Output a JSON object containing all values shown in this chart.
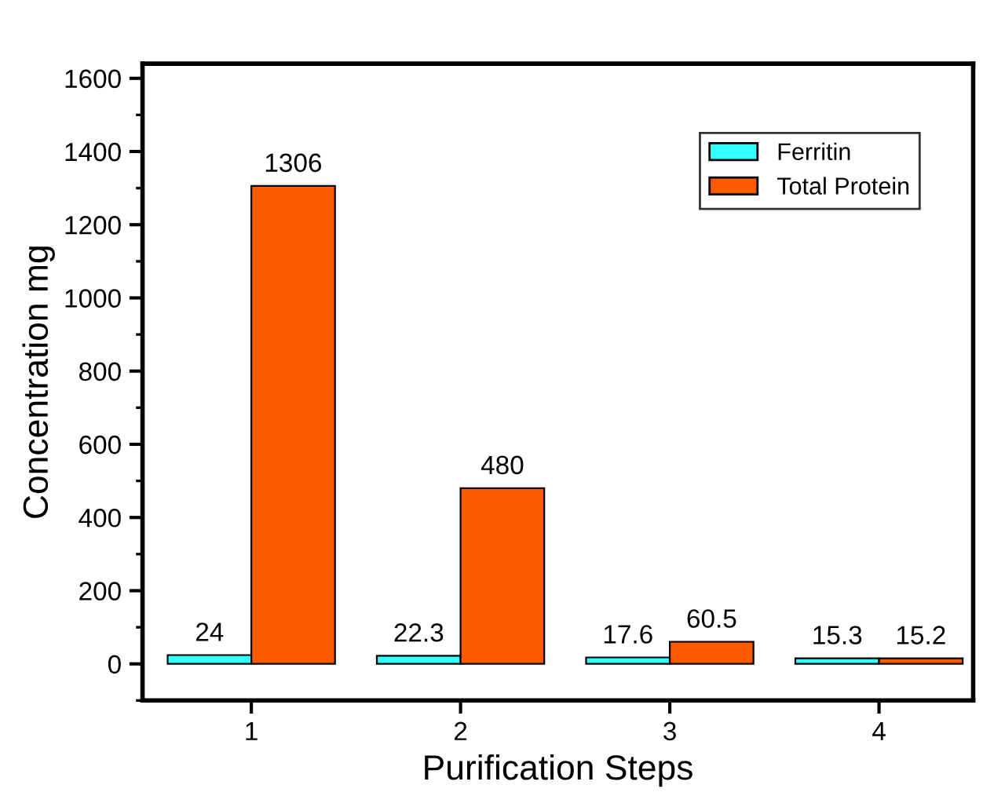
{
  "chart_data": {
    "type": "bar",
    "xlabel": "Purification Steps",
    "ylabel": "Concentration mg",
    "categories": [
      "1",
      "2",
      "3",
      "4"
    ],
    "series": [
      {
        "name": "Ferritin",
        "color": "#33ffff",
        "values": [
          24,
          22.3,
          17.6,
          15.3
        ]
      },
      {
        "name": "Total Protein",
        "color": "#ff5a00",
        "values": [
          1306,
          480,
          60.5,
          15.2
        ]
      }
    ],
    "ylim": [
      -100,
      1640
    ],
    "yticks": [
      0,
      200,
      400,
      600,
      800,
      1000,
      1200,
      1400,
      1600
    ],
    "data_labels": true,
    "legend": "top right",
    "grid": false
  }
}
